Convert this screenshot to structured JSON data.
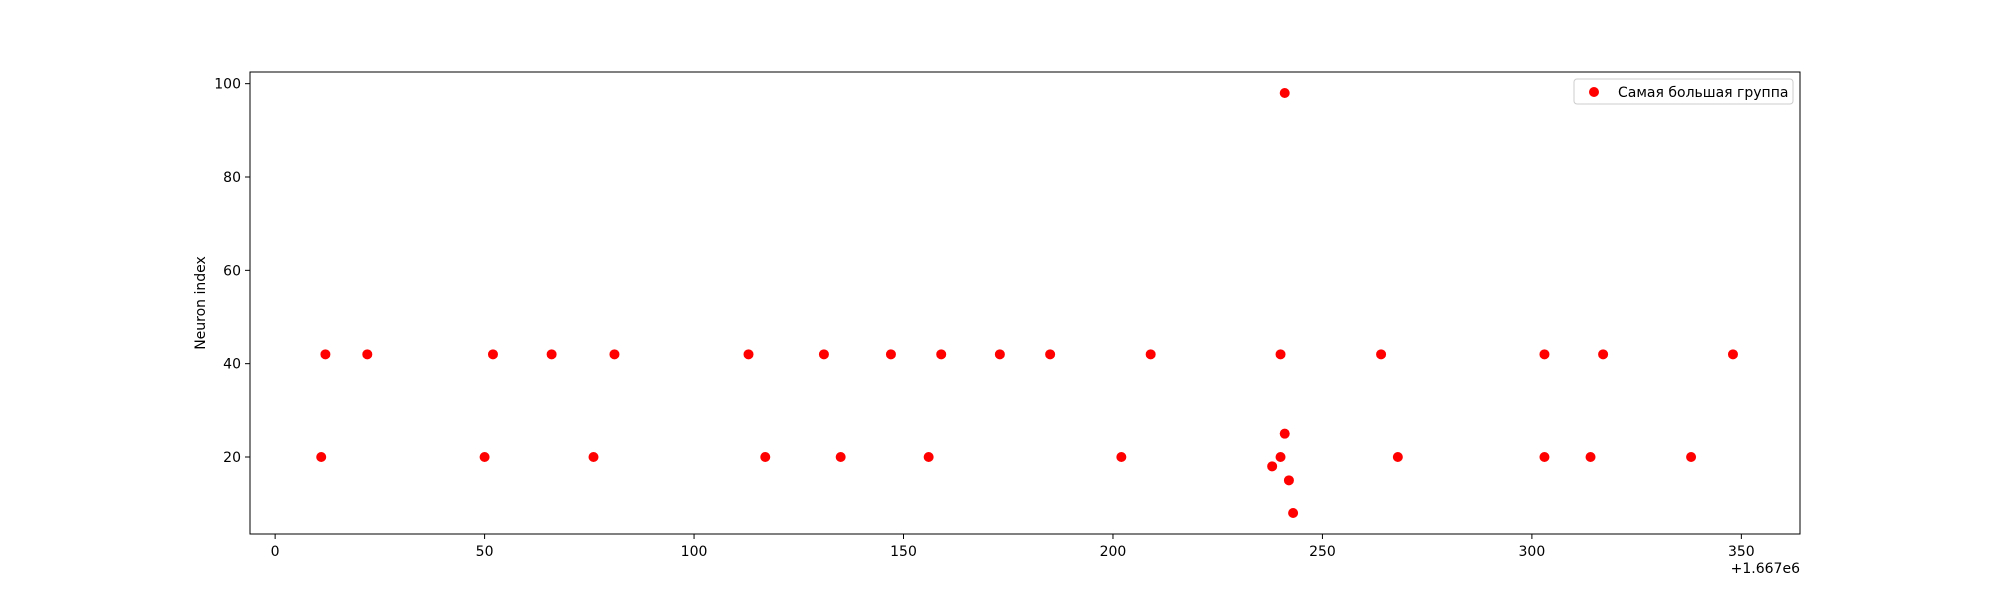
{
  "chart_data": {
    "type": "scatter",
    "title": "",
    "xlabel": "",
    "ylabel": "Neuron index",
    "x_offset_label": "+1.667e6",
    "xlim": [
      -6,
      364
    ],
    "ylim": [
      3.5,
      102.5
    ],
    "x_ticks": [
      0,
      50,
      100,
      150,
      200,
      250,
      300,
      350
    ],
    "y_ticks": [
      20,
      40,
      60,
      80,
      100
    ],
    "grid": false,
    "legend": "top-right",
    "series": [
      {
        "name": "Самая большая группа",
        "color": "#ff0000",
        "points": [
          [
            11,
            20
          ],
          [
            12,
            42
          ],
          [
            22,
            42
          ],
          [
            50,
            20
          ],
          [
            52,
            42
          ],
          [
            66,
            42
          ],
          [
            76,
            20
          ],
          [
            81,
            42
          ],
          [
            113,
            42
          ],
          [
            117,
            20
          ],
          [
            131,
            42
          ],
          [
            135,
            20
          ],
          [
            147,
            42
          ],
          [
            156,
            20
          ],
          [
            159,
            42
          ],
          [
            173,
            42
          ],
          [
            185,
            42
          ],
          [
            202,
            20
          ],
          [
            209,
            42
          ],
          [
            238,
            18
          ],
          [
            240,
            42
          ],
          [
            240,
            20
          ],
          [
            241,
            98
          ],
          [
            241,
            25
          ],
          [
            242,
            15
          ],
          [
            243,
            8
          ],
          [
            264,
            42
          ],
          [
            268,
            20
          ],
          [
            303,
            42
          ],
          [
            303,
            20
          ],
          [
            314,
            20
          ],
          [
            317,
            42
          ],
          [
            338,
            20
          ],
          [
            348,
            42
          ]
        ]
      }
    ]
  },
  "colors": {
    "axis": "#000000",
    "background": "#ffffff"
  }
}
